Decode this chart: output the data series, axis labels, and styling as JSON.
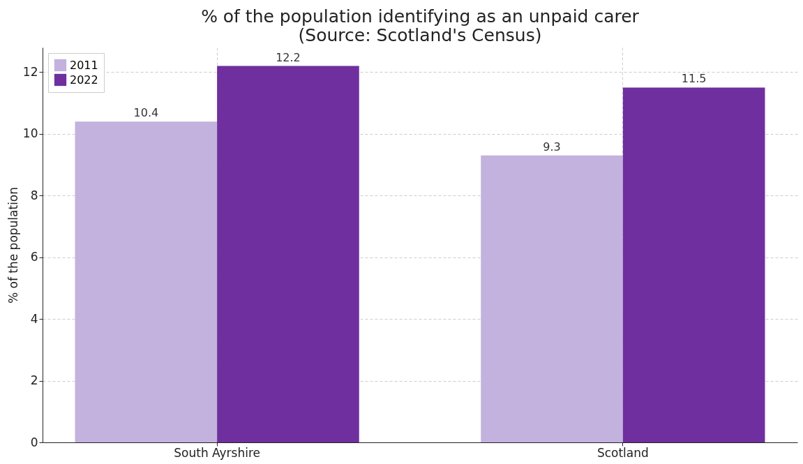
{
  "chart_data": {
    "type": "bar",
    "title": [
      "% of the population identifying as an unpaid carer",
      "(Source: Scotland's Census)"
    ],
    "ylabel": "% of the population",
    "categories": [
      "South Ayrshire",
      "Scotland"
    ],
    "series": [
      {
        "name": "2011",
        "color": "#c2b2dd",
        "values": [
          10.4,
          9.3
        ]
      },
      {
        "name": "2022",
        "color": "#6f2f9f",
        "values": [
          12.2,
          11.5
        ]
      }
    ],
    "ylim": [
      0,
      12.8
    ],
    "yticks": [
      0,
      2,
      4,
      6,
      8,
      10,
      12
    ],
    "grid": true,
    "legend": "top left",
    "data_labels": true
  }
}
